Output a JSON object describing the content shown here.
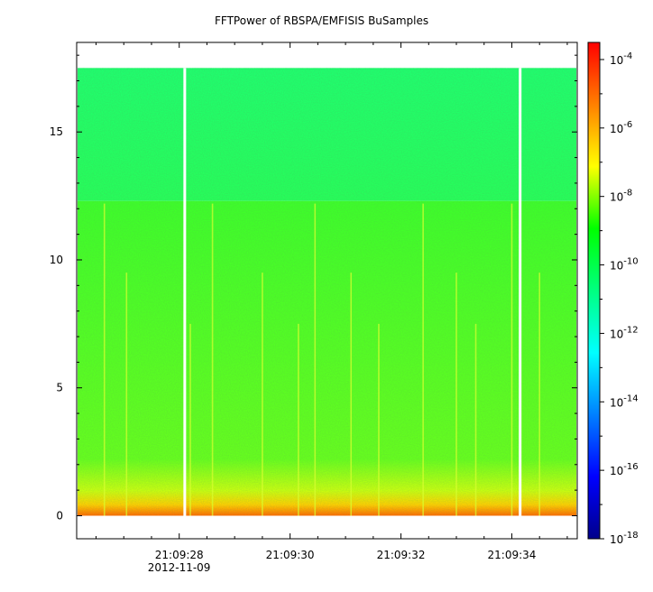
{
  "chart_data": {
    "type": "heatmap",
    "title": "FFTPower of RBSPA/EMFISIS  BuSamples",
    "xlabel": "",
    "ylabel": "",
    "x_ticks": [
      {
        "label": "21:09:28",
        "sublabel": "2012-11-09",
        "t": 28
      },
      {
        "label": "21:09:30",
        "t": 30
      },
      {
        "label": "21:09:32",
        "t": 32
      },
      {
        "label": "21:09:34",
        "t": 34
      }
    ],
    "xlim_seconds": [
      26.15,
      35.18
    ],
    "y_ticks": [
      0,
      5,
      10,
      15
    ],
    "ylim": [
      -0.9,
      18.5
    ],
    "data_top": 17.5,
    "band_edge": 12.3,
    "gaps_seconds": [
      28.1,
      34.15
    ],
    "colorbar": {
      "scale": "log",
      "range_exponent": [
        -18,
        -3.5
      ],
      "ticks": [
        "10^-4",
        "10^-6",
        "10^-8",
        "10^-10",
        "10^-12",
        "10^-14",
        "10^-16",
        "10^-18"
      ],
      "tick_exponents": [
        -4,
        -6,
        -8,
        -10,
        -12,
        -14,
        -16,
        -18
      ],
      "colormap": [
        "#00008b",
        "#0000ff",
        "#0080ff",
        "#00ffff",
        "#00ff80",
        "#00ff00",
        "#ffff00",
        "#ff8000",
        "#ff0000"
      ]
    },
    "grid": false
  }
}
